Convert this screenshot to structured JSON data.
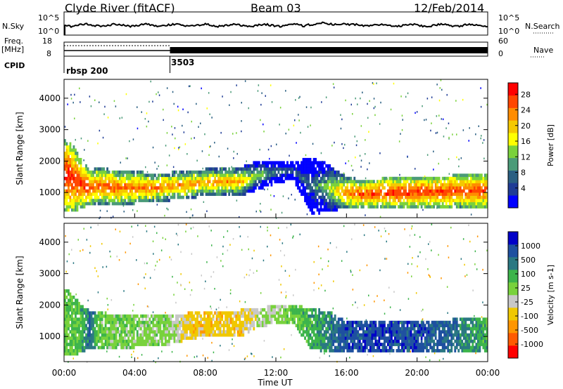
{
  "header": {
    "station": "Clyde River (fitACF)",
    "beam": "Beam 03",
    "date": "12/Feb/2014"
  },
  "top_panels": {
    "nsky_label": "N.Sky",
    "nsky_ticks": [
      "10^5",
      "10^0"
    ],
    "nsearch_label": "N.Search",
    "nsearch_ticks": [
      "10^5",
      "10^0"
    ],
    "freq_label": "Freq.",
    "freq_unit": "[MHz]",
    "freq_ticks": [
      "18",
      "8"
    ],
    "nave_label": "Nave",
    "nave_ticks": [
      "60",
      "0"
    ],
    "cpid_label": "CPID",
    "cpid_segments": [
      {
        "name": "rbsp 200",
        "start_hour": 0
      },
      {
        "name": "3503",
        "start_hour": 6
      }
    ]
  },
  "colors": {
    "power_scale": [
      "#0000ff",
      "#1f3c96",
      "#2a5f82",
      "#4b9b78",
      "#7ad23c",
      "#ffff00",
      "#f5c800",
      "#ff8c00",
      "#ff4600",
      "#ff0000"
    ],
    "velocity_scale": [
      "#ff0000",
      "#ff5a00",
      "#ff9600",
      "#f0c800",
      "#c8c8c8",
      "#78d23c",
      "#3cb44b",
      "#2a7882",
      "#1e50a0",
      "#0000c8"
    ]
  },
  "chart_data": [
    {
      "type": "heatmap",
      "title": "Power",
      "xlabel": "",
      "ylabel": "Slant Range [km]",
      "x_ticks": [
        "00:00",
        "04:00",
        "08:00",
        "12:00",
        "16:00",
        "20:00",
        "00:00"
      ],
      "xlim_hours": [
        0,
        24
      ],
      "ylim": [
        200,
        4600
      ],
      "y_ticks": [
        1000,
        2000,
        3000,
        4000
      ],
      "colorbar_label": "Power [dB]",
      "colorbar_ticks": [
        "28",
        "24",
        "20",
        "16",
        "12",
        "8",
        "4"
      ],
      "colorbar_range": [
        0,
        30
      ],
      "band": [
        {
          "h": 0.0,
          "lo": 400,
          "hi": 2700,
          "v": 29
        },
        {
          "h": 0.5,
          "lo": 400,
          "hi": 2500,
          "v": 28
        },
        {
          "h": 1.0,
          "lo": 500,
          "hi": 2000,
          "v": 27
        },
        {
          "h": 1.5,
          "lo": 650,
          "hi": 1700,
          "v": 26
        },
        {
          "h": 2.0,
          "lo": 650,
          "hi": 1800,
          "v": 25
        },
        {
          "h": 3.0,
          "lo": 600,
          "hi": 1700,
          "v": 25
        },
        {
          "h": 4.0,
          "lo": 650,
          "hi": 1700,
          "v": 24
        },
        {
          "h": 5.0,
          "lo": 700,
          "hi": 1600,
          "v": 24
        },
        {
          "h": 6.0,
          "lo": 750,
          "hi": 1650,
          "v": 23
        },
        {
          "h": 7.0,
          "lo": 800,
          "hi": 1700,
          "v": 23
        },
        {
          "h": 8.0,
          "lo": 900,
          "hi": 1750,
          "v": 22
        },
        {
          "h": 9.0,
          "lo": 900,
          "hi": 1800,
          "v": 22
        },
        {
          "h": 10.0,
          "lo": 900,
          "hi": 1800,
          "v": 21
        },
        {
          "h": 11.0,
          "lo": 1100,
          "hi": 2000,
          "v": 14
        },
        {
          "h": 12.0,
          "lo": 1300,
          "hi": 2000,
          "v": 10
        },
        {
          "h": 13.0,
          "lo": 1400,
          "hi": 2000,
          "v": 8
        },
        {
          "h": 14.0,
          "lo": 300,
          "hi": 2100,
          "v": 8
        },
        {
          "h": 15.0,
          "lo": 400,
          "hi": 1900,
          "v": 15
        },
        {
          "h": 16.0,
          "lo": 500,
          "hi": 1500,
          "v": 24
        },
        {
          "h": 17.0,
          "lo": 500,
          "hi": 1400,
          "v": 26
        },
        {
          "h": 18.0,
          "lo": 550,
          "hi": 1450,
          "v": 27
        },
        {
          "h": 19.0,
          "lo": 550,
          "hi": 1450,
          "v": 28
        },
        {
          "h": 20.0,
          "lo": 550,
          "hi": 1500,
          "v": 27
        },
        {
          "h": 21.0,
          "lo": 550,
          "hi": 1500,
          "v": 27
        },
        {
          "h": 22.0,
          "lo": 550,
          "hi": 1550,
          "v": 27
        },
        {
          "h": 23.0,
          "lo": 500,
          "hi": 1600,
          "v": 26
        },
        {
          "h": 24.0,
          "lo": 500,
          "hi": 1650,
          "v": 26
        }
      ]
    },
    {
      "type": "heatmap",
      "title": "Velocity",
      "xlabel": "Time UT",
      "ylabel": "Slant Range [km]",
      "x_ticks": [
        "00:00",
        "04:00",
        "08:00",
        "12:00",
        "16:00",
        "20:00",
        "00:00"
      ],
      "xlim_hours": [
        0,
        24
      ],
      "ylim": [
        200,
        4600
      ],
      "y_ticks": [
        1000,
        2000,
        3000,
        4000
      ],
      "colorbar_label": "Velocity [m s-1]",
      "colorbar_ticks": [
        "1000",
        "500",
        "100",
        "25",
        "-25",
        "-100",
        "-500",
        "-1000"
      ],
      "colorbar_range": [
        -1000,
        1000
      ],
      "band": [
        {
          "h": 0.0,
          "lo": 400,
          "hi": 2600,
          "v": 150
        },
        {
          "h": 0.5,
          "lo": 400,
          "hi": 2300,
          "v": 200
        },
        {
          "h": 1.0,
          "lo": 500,
          "hi": 2000,
          "v": 300
        },
        {
          "h": 1.5,
          "lo": 650,
          "hi": 1800,
          "v": 600
        },
        {
          "h": 2.0,
          "lo": 650,
          "hi": 1800,
          "v": 150
        },
        {
          "h": 3.0,
          "lo": 600,
          "hi": 1700,
          "v": 100
        },
        {
          "h": 4.0,
          "lo": 650,
          "hi": 1700,
          "v": 100
        },
        {
          "h": 5.0,
          "lo": 700,
          "hi": 1650,
          "v": 80
        },
        {
          "h": 6.0,
          "lo": 750,
          "hi": 1700,
          "v": 60
        },
        {
          "h": 7.0,
          "lo": 900,
          "hi": 1750,
          "v": -250
        },
        {
          "h": 8.0,
          "lo": 1000,
          "hi": 1800,
          "v": -300
        },
        {
          "h": 9.0,
          "lo": 1000,
          "hi": 1800,
          "v": -300
        },
        {
          "h": 10.0,
          "lo": 1000,
          "hi": 1850,
          "v": -300
        },
        {
          "h": 11.0,
          "lo": 1300,
          "hi": 1900,
          "v": -50
        },
        {
          "h": 12.0,
          "lo": 1400,
          "hi": 2000,
          "v": 0
        },
        {
          "h": 13.0,
          "lo": 1400,
          "hi": 2000,
          "v": 200
        },
        {
          "h": 14.0,
          "lo": 600,
          "hi": 1900,
          "v": 300
        },
        {
          "h": 15.0,
          "lo": 500,
          "hi": 1800,
          "v": 500
        },
        {
          "h": 16.0,
          "lo": 500,
          "hi": 1500,
          "v": 700
        },
        {
          "h": 17.0,
          "lo": 500,
          "hi": 1450,
          "v": 700
        },
        {
          "h": 18.0,
          "lo": 550,
          "hi": 1450,
          "v": 750
        },
        {
          "h": 19.0,
          "lo": 550,
          "hi": 1450,
          "v": 700
        },
        {
          "h": 20.0,
          "lo": 550,
          "hi": 1500,
          "v": 700
        },
        {
          "h": 21.0,
          "lo": 550,
          "hi": 1500,
          "v": 650
        },
        {
          "h": 22.0,
          "lo": 550,
          "hi": 1550,
          "v": 600
        },
        {
          "h": 23.0,
          "lo": 500,
          "hi": 1600,
          "v": 400
        },
        {
          "h": 24.0,
          "lo": 500,
          "hi": 1650,
          "v": 300
        }
      ]
    }
  ]
}
